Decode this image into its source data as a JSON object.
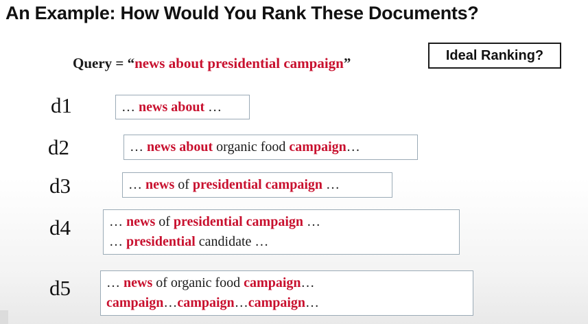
{
  "title": "An Example: How Would You Rank These Documents?",
  "query": {
    "prefix": "Query = “",
    "text": "news about presidential campaign",
    "suffix": "”"
  },
  "ideal_ranking_label": "Ideal Ranking?",
  "documents": [
    {
      "label": "d1",
      "lines": [
        [
          {
            "t": "… ",
            "hl": false
          },
          {
            "t": "news about",
            "hl": true
          },
          {
            "t": " …",
            "hl": false
          }
        ]
      ]
    },
    {
      "label": "d2",
      "lines": [
        [
          {
            "t": "… ",
            "hl": false
          },
          {
            "t": "news about",
            "hl": true
          },
          {
            "t": " organic food ",
            "hl": false
          },
          {
            "t": "campaign",
            "hl": true
          },
          {
            "t": "…",
            "hl": false
          }
        ]
      ]
    },
    {
      "label": "d3",
      "lines": [
        [
          {
            "t": "… ",
            "hl": false
          },
          {
            "t": "news",
            "hl": true
          },
          {
            "t": " of ",
            "hl": false
          },
          {
            "t": "presidential campaign",
            "hl": true
          },
          {
            "t": " …",
            "hl": false
          }
        ]
      ]
    },
    {
      "label": "d4",
      "lines": [
        [
          {
            "t": "… ",
            "hl": false
          },
          {
            "t": "news",
            "hl": true
          },
          {
            "t": " of ",
            "hl": false
          },
          {
            "t": "presidential campaign",
            "hl": true
          },
          {
            "t": " …",
            "hl": false
          }
        ],
        [
          {
            "t": "… ",
            "hl": false
          },
          {
            "t": "presidential",
            "hl": true
          },
          {
            "t": " candidate …",
            "hl": false
          }
        ]
      ]
    },
    {
      "label": "d5",
      "lines": [
        [
          {
            "t": "… ",
            "hl": false
          },
          {
            "t": "news",
            "hl": true
          },
          {
            "t": " of organic food ",
            "hl": false
          },
          {
            "t": "campaign",
            "hl": true
          },
          {
            "t": "…",
            "hl": false
          }
        ],
        [
          {
            "t": "campaign",
            "hl": true
          },
          {
            "t": "…",
            "hl": false
          },
          {
            "t": "campaign",
            "hl": true
          },
          {
            "t": "…",
            "hl": false
          },
          {
            "t": "campaign",
            "hl": true
          },
          {
            "t": "…",
            "hl": false
          }
        ]
      ]
    }
  ],
  "colors": {
    "highlight": "#c8102e",
    "text": "#1a1a1a",
    "box_border": "#9aaab6"
  }
}
